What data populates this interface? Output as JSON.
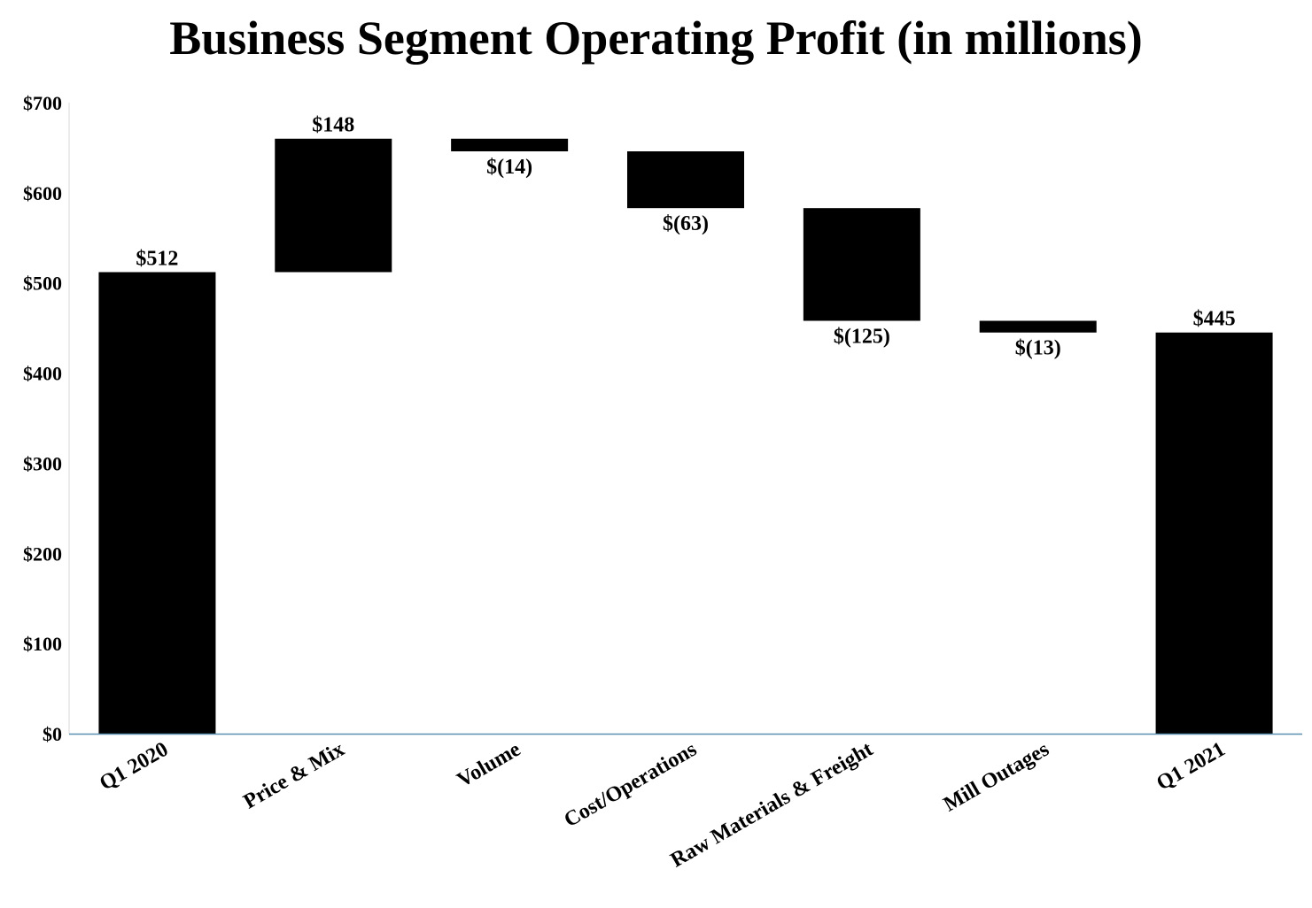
{
  "colors": {
    "bar": "#000000",
    "axis_line": "#5b8fb0",
    "background": "#ffffff",
    "text": "#000000"
  },
  "chart_data": {
    "type": "waterfall",
    "title": "Business Segment Operating Profit (in millions)",
    "xlabel": "",
    "ylabel": "",
    "ylim": [
      0,
      700
    ],
    "y_ticks": [
      0,
      100,
      200,
      300,
      400,
      500,
      600,
      700
    ],
    "y_tick_labels": [
      "$0",
      "$100",
      "$200",
      "$300",
      "$400",
      "$500",
      "$600",
      "$700"
    ],
    "grid": false,
    "legend": "none",
    "categories": [
      "Q1 2020",
      "Price & Mix",
      "Volume",
      "Cost/Operations",
      "Raw Materials & Freight",
      "Mill Outages",
      "Q1 2021"
    ],
    "bars": [
      {
        "category": "Q1 2020",
        "kind": "total",
        "value": 512,
        "base": 0,
        "label": "$512"
      },
      {
        "category": "Price & Mix",
        "kind": "change",
        "value": 148,
        "base": 512,
        "label": "$148"
      },
      {
        "category": "Volume",
        "kind": "change",
        "value": -14,
        "base": 660,
        "label": "$(14)"
      },
      {
        "category": "Cost/Operations",
        "kind": "change",
        "value": -63,
        "base": 646,
        "label": "$(63)"
      },
      {
        "category": "Raw Materials & Freight",
        "kind": "change",
        "value": -125,
        "base": 583,
        "label": "$(125)"
      },
      {
        "category": "Mill Outages",
        "kind": "change",
        "value": -13,
        "base": 458,
        "label": "$(13)"
      },
      {
        "category": "Q1 2021",
        "kind": "total",
        "value": 445,
        "base": 0,
        "label": "$445"
      }
    ]
  }
}
